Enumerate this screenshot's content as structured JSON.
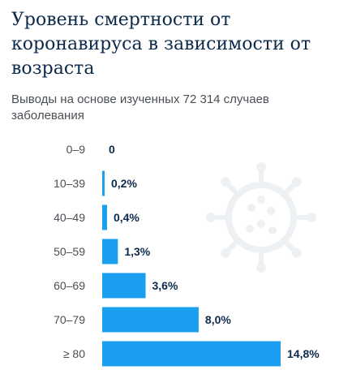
{
  "title": "Уровень смертности от коронавируса в зависимости от возраста",
  "subtitle": "Выводы на основе изученных 72 314 случаев заболевания",
  "colors": {
    "bar": "#1a9ff0",
    "title": "#0c2a4a",
    "text": "#4a4f55",
    "virus": "#eef1f4"
  },
  "icons": {
    "background": "virus-icon"
  },
  "chart_data": {
    "type": "bar",
    "orientation": "horizontal",
    "categories": [
      "0–9",
      "10–39",
      "40–49",
      "50–59",
      "60–69",
      "70–79",
      "≥ 80"
    ],
    "values": [
      0,
      0.2,
      0.4,
      1.3,
      3.6,
      8.0,
      14.8
    ],
    "data_labels": [
      "0",
      "0,2%",
      "0,4%",
      "1,3%",
      "3,6%",
      "8,0%",
      "14,8%"
    ],
    "title": "Уровень смертности от коронавируса в зависимости от возраста",
    "xlabel": "",
    "ylabel": "",
    "xlim": [
      0,
      14.8
    ],
    "grid": false,
    "legend": "none"
  }
}
